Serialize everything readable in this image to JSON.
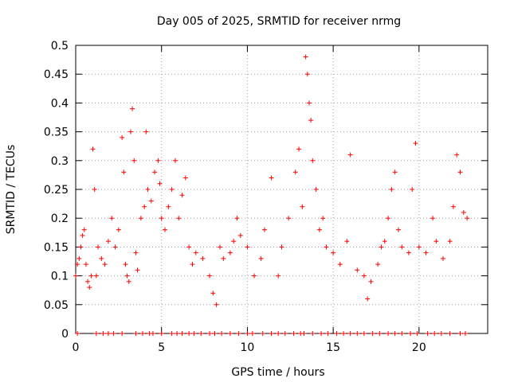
{
  "chart_data": {
    "type": "scatter",
    "title": "Day 005 of 2025, SRMTID for receiver nrmg",
    "xlabel": "GPS time / hours",
    "ylabel": "SRMTID / TECUs",
    "xlim": [
      0,
      24
    ],
    "ylim": [
      0,
      0.5
    ],
    "xticks": [
      0,
      5,
      10,
      15,
      20
    ],
    "xtick_labels": [
      "0",
      "5",
      "10",
      "15",
      "20"
    ],
    "yticks": [
      0,
      0.05,
      0.1,
      0.15,
      0.2,
      0.25,
      0.3,
      0.35,
      0.4,
      0.45,
      0.5
    ],
    "ytick_labels": [
      "0",
      "0.05",
      "0.1",
      "0.15",
      "0.2",
      "0.25",
      "0.3",
      "0.35",
      "0.4",
      "0.45",
      "0.5"
    ],
    "grid": true,
    "marker": "+",
    "color": "#ff0000",
    "series": [
      {
        "name": "SRMTID",
        "x": [
          0.0,
          0.1,
          0.2,
          0.3,
          0.4,
          0.5,
          0.6,
          0.7,
          0.8,
          0.9,
          1.0,
          1.1,
          1.2,
          1.3,
          1.5,
          1.7,
          1.9,
          2.1,
          2.3,
          2.5,
          2.7,
          2.8,
          2.9,
          3.0,
          3.1,
          3.2,
          3.3,
          3.4,
          3.5,
          3.6,
          3.8,
          4.0,
          4.1,
          4.2,
          4.4,
          4.6,
          4.8,
          4.9,
          5.0,
          5.2,
          5.4,
          5.6,
          5.8,
          6.0,
          6.2,
          6.4,
          6.6,
          6.8,
          7.0,
          7.4,
          7.8,
          8.0,
          8.2,
          8.4,
          8.6,
          9.0,
          9.2,
          9.4,
          9.6,
          10.0,
          10.4,
          10.8,
          11.0,
          11.4,
          11.8,
          12.0,
          12.4,
          12.8,
          13.0,
          13.2,
          13.4,
          13.5,
          13.6,
          13.7,
          13.8,
          14.0,
          14.2,
          14.4,
          14.6,
          15.0,
          15.4,
          15.8,
          16.0,
          16.4,
          16.8,
          17.0,
          17.2,
          17.6,
          17.8,
          18.0,
          18.2,
          18.4,
          18.6,
          18.8,
          19.0,
          19.4,
          19.6,
          19.8,
          20.0,
          20.4,
          20.8,
          21.0,
          21.4,
          21.8,
          22.0,
          22.2,
          22.4,
          22.6,
          22.8
        ],
        "values": [
          0.1,
          0.12,
          0.13,
          0.15,
          0.17,
          0.18,
          0.12,
          0.09,
          0.08,
          0.1,
          0.32,
          0.25,
          0.1,
          0.15,
          0.13,
          0.12,
          0.16,
          0.2,
          0.15,
          0.18,
          0.34,
          0.28,
          0.12,
          0.1,
          0.09,
          0.35,
          0.39,
          0.3,
          0.14,
          0.11,
          0.2,
          0.22,
          0.35,
          0.25,
          0.23,
          0.28,
          0.3,
          0.26,
          0.2,
          0.18,
          0.22,
          0.25,
          0.3,
          0.2,
          0.24,
          0.27,
          0.15,
          0.12,
          0.14,
          0.13,
          0.1,
          0.07,
          0.05,
          0.15,
          0.13,
          0.14,
          0.16,
          0.2,
          0.17,
          0.15,
          0.1,
          0.13,
          0.18,
          0.27,
          0.1,
          0.15,
          0.2,
          0.28,
          0.32,
          0.22,
          0.48,
          0.45,
          0.4,
          0.37,
          0.3,
          0.25,
          0.18,
          0.2,
          0.15,
          0.14,
          0.12,
          0.16,
          0.31,
          0.11,
          0.1,
          0.06,
          0.09,
          0.12,
          0.15,
          0.16,
          0.2,
          0.25,
          0.28,
          0.18,
          0.15,
          0.14,
          0.25,
          0.33,
          0.15,
          0.14,
          0.2,
          0.16,
          0.13,
          0.16,
          0.22,
          0.31,
          0.28,
          0.21,
          0.2
        ],
        "zero_x": [
          0.1,
          1.2,
          1.6,
          1.9,
          2.2,
          2.7,
          3.5,
          3.9,
          4.3,
          4.5,
          5.0,
          5.6,
          5.9,
          6.2,
          6.6,
          6.9,
          7.3,
          7.8,
          8.1,
          8.5,
          9.0,
          9.5,
          10.0,
          10.3,
          10.9,
          11.4,
          11.8,
          12.2,
          12.7,
          13.1,
          13.3,
          13.8,
          14.3,
          14.7,
          15.2,
          15.6,
          16.0,
          16.4,
          16.8,
          17.3,
          17.7,
          18.2,
          18.6,
          19.0,
          19.5,
          19.9,
          20.5,
          20.9,
          21.3,
          21.8,
          22.4,
          22.7
        ]
      }
    ]
  }
}
